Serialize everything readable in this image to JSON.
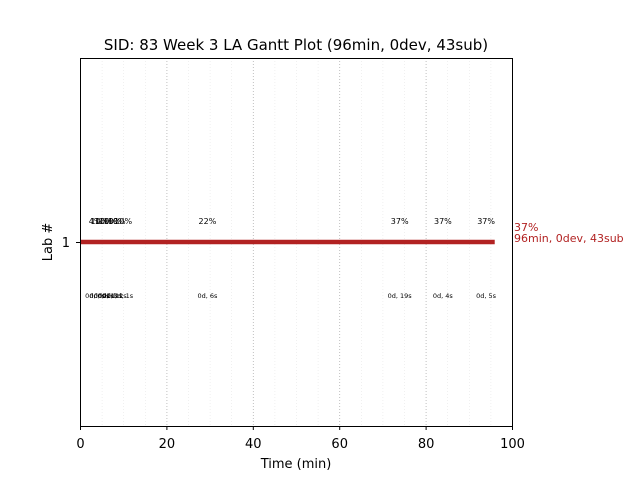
{
  "chart_data": {
    "type": "bar",
    "title": "SID: 83 Week 3 LA Gantt Plot (96min, 0dev, 43sub)",
    "xlabel": "Time (min)",
    "ylabel": "Lab #",
    "xlim": [
      0,
      100
    ],
    "x_ticks": [
      0,
      20,
      40,
      60,
      80,
      100
    ],
    "y_categories": [
      "1"
    ],
    "grid": {
      "major_x": true,
      "minor_x": true
    },
    "bar": {
      "lab": "1",
      "start_min": 0,
      "end_min": 96,
      "color": "#b22222",
      "end_label_line1": "37%",
      "end_label_line2": "96min, 0dev, 43sub"
    },
    "segments": [
      {
        "x": 3.5,
        "pct": "4%",
        "info": "0d, 0s"
      },
      {
        "x": 4.5,
        "pct": "10%",
        "info": "0d, 0s"
      },
      {
        "x": 5.5,
        "pct": "10%",
        "info": "0d, 1s"
      },
      {
        "x": 6.5,
        "pct": "10%",
        "info": "0d, 1s"
      },
      {
        "x": 7.5,
        "pct": "10%",
        "info": "0d, 2s"
      },
      {
        "x": 8.5,
        "pct": "10%",
        "info": "0d, 2s"
      },
      {
        "x": 10.0,
        "pct": "10%",
        "info": "0d, 1s"
      },
      {
        "x": 29.5,
        "pct": "22%",
        "info": "0d, 6s"
      },
      {
        "x": 74.0,
        "pct": "37%",
        "info": "0d, 19s"
      },
      {
        "x": 84.0,
        "pct": "37%",
        "info": "0d, 4s"
      },
      {
        "x": 94.0,
        "pct": "37%",
        "info": "0d, 5s"
      }
    ]
  }
}
